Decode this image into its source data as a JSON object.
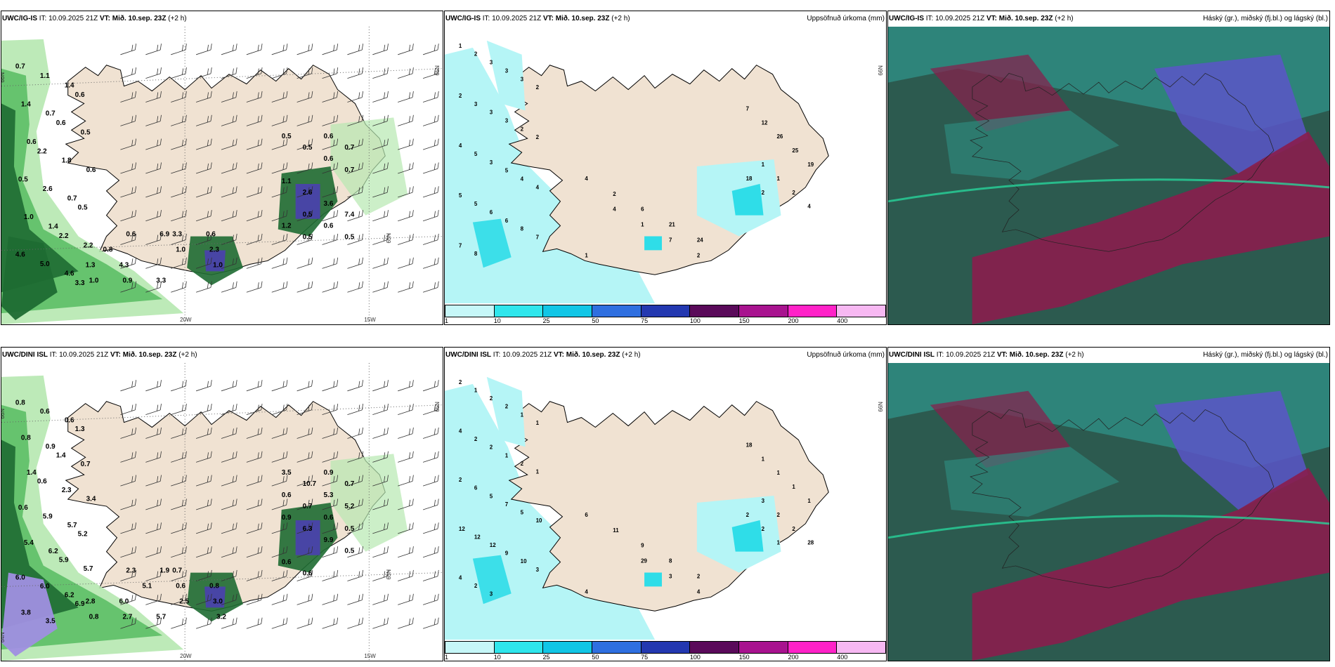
{
  "colors": {
    "land": "#f0e2d2",
    "sea": "#ffffff",
    "green_light": "#b6e8b0",
    "green_mid": "#5cbf66",
    "green_dark": "#1e6b32",
    "purple": "#9f8fe0",
    "precip_light": "#b5f5f6",
    "precip_mid": "#2fdde8",
    "cloud_dark": "#2c5a4f",
    "cloud_teal": "#2f8f84",
    "cloud_blue": "#5b55c8",
    "cloud_red": "#8a1d4c"
  },
  "panels": [
    {
      "model": "UWC/IG-IS",
      "it_label": "IT:",
      "it": "10.09.2025 21Z",
      "vt_label": "VT:",
      "vt": "Mið. 10.sep. 23Z",
      "lead": "(+2 h)",
      "right_title": "",
      "type": "wind",
      "axis": {
        "lat": "66N",
        "lon_a": "20W",
        "lon_b": "15W",
        "lat2": "65N"
      },
      "labels": [
        "0.7",
        "1.1",
        "1.4",
        "0.6",
        "1.4",
        "0.7",
        "0.6",
        "0.5",
        "0.6",
        "2.2",
        "1.8",
        "0.6",
        "0.5",
        "2.6",
        "0.7",
        "0.5",
        "1.0",
        "1.4",
        "2.2",
        "2.2",
        "4.6",
        "5.0",
        "4.6",
        "3.3",
        "0.6",
        "0.8",
        "4.3",
        "3.3",
        "3.3",
        "2.3",
        "1.3",
        "0.9",
        "6.9",
        "1.0",
        "1.0",
        "1.0",
        "0.6",
        "0.5",
        "0.6",
        "0.5",
        "0.5",
        "0.5",
        "0.6",
        "0.7",
        "1.1",
        "2.6",
        "3.6",
        "7.4",
        "1.2",
        "0.5",
        "0.6",
        "0.7"
      ]
    },
    {
      "model": "UWC/IG-IS",
      "it_label": "IT:",
      "it": "10.09.2025 21Z",
      "vt_label": "VT:",
      "vt": "Mið. 10.sep. 23Z",
      "lead": "(+2 h)",
      "right_title": "Uppsöfnuð úrkoma (mm)",
      "type": "precip",
      "axis": {
        "lat": "66N",
        "lat2": "65N"
      },
      "labels": [
        "1",
        "2",
        "3",
        "3",
        "3",
        "2",
        "2",
        "3",
        "3",
        "3",
        "2",
        "2",
        "4",
        "5",
        "3",
        "5",
        "4",
        "4",
        "5",
        "5",
        "6",
        "6",
        "8",
        "7",
        "7",
        "8",
        "4",
        "1",
        "7",
        "2",
        "4",
        "2",
        "6",
        "21",
        "24",
        "1",
        "1",
        "1",
        "2",
        "4",
        "7",
        "12",
        "26",
        "25",
        "19",
        "18",
        "2"
      ],
      "colorbar": {
        "ticks": [
          "1",
          "10",
          "25",
          "50",
          "75",
          "100",
          "150",
          "200",
          "400"
        ],
        "colors": [
          "#c6f7f8",
          "#2fe6ec",
          "#11c6e6",
          "#2f6fe0",
          "#2338b0",
          "#5a0a5a",
          "#a8138f",
          "#ff22c8",
          "#f7b8f2"
        ]
      }
    },
    {
      "model": "UWC/IG-IS",
      "it_label": "IT:",
      "it": "10.09.2025 21Z",
      "vt_label": "VT:",
      "vt": "Mið. 10.sep. 23Z",
      "lead": "(+2 h)",
      "right_title": "Háský (gr.), miðský (fj.bl.) og lágský (bl.)",
      "type": "cloud"
    },
    {
      "model": "UWC/DINI ISL",
      "it_label": "IT:",
      "it": "10.09.2025 21Z",
      "vt_label": "VT:",
      "vt": "Mið. 10.sep. 23Z",
      "lead": "(+2 h)",
      "right_title": "",
      "type": "wind",
      "axis": {
        "lat": "66N",
        "lon_a": "20W",
        "lon_b": "15W",
        "lat2": "65N",
        "lat3": "64N"
      },
      "labels": [
        "0.8",
        "0.6",
        "0.6",
        "1.3",
        "0.8",
        "0.9",
        "1.4",
        "0.7",
        "1.4",
        "0.6",
        "2.3",
        "3.4",
        "0.6",
        "5.9",
        "5.7",
        "5.2",
        "5.4",
        "6.2",
        "5.9",
        "5.7",
        "6.0",
        "6.0",
        "6.2",
        "6.9",
        "3.8",
        "3.5",
        "6.0",
        "5.7",
        "0.7",
        "0.8",
        "2.8",
        "2.7",
        "1.9",
        "0.6",
        "3.0",
        "0.8",
        "2.3",
        "5.1",
        "2.5",
        "3.2",
        "3.5",
        "10.7",
        "5.3",
        "5.2",
        "0.9",
        "6.3",
        "9.9",
        "0.5",
        "0.6",
        "0.6",
        "0.9",
        "0.7",
        "0.6",
        "0.7",
        "0.6",
        "0.5"
      ]
    },
    {
      "model": "UWC/DINI ISL",
      "it_label": "IT:",
      "it": "10.09.2025 21Z",
      "vt_label": "VT:",
      "vt": "Mið. 10.sep. 23Z",
      "lead": "(+2 h)",
      "right_title": "Uppsöfnuð úrkoma (mm)",
      "type": "precip",
      "axis": {
        "lat": "66N",
        "lat2": "65N"
      },
      "labels": [
        "2",
        "1",
        "2",
        "2",
        "1",
        "1",
        "4",
        "2",
        "2",
        "1",
        "2",
        "1",
        "2",
        "6",
        "5",
        "7",
        "5",
        "10",
        "12",
        "12",
        "12",
        "9",
        "10",
        "3",
        "4",
        "2",
        "3",
        "29",
        "3",
        "4",
        "6",
        "11",
        "9",
        "8",
        "2",
        "4",
        "3",
        "2",
        "2",
        "28",
        "18",
        "1",
        "1",
        "1",
        "1",
        "2",
        "2",
        "1"
      ],
      "colorbar": {
        "ticks": [
          "1",
          "10",
          "25",
          "50",
          "75",
          "100",
          "150",
          "200",
          "400"
        ],
        "colors": [
          "#c6f7f8",
          "#2fe6ec",
          "#11c6e6",
          "#2f6fe0",
          "#2338b0",
          "#5a0a5a",
          "#a8138f",
          "#ff22c8",
          "#f7b8f2"
        ]
      }
    },
    {
      "model": "UWC/DINI ISL",
      "it_label": "IT:",
      "it": "10.09.2025 21Z",
      "vt_label": "VT:",
      "vt": "Mið. 10.sep. 23Z",
      "lead": "(+2 h)",
      "right_title": "Háský (gr.), miðský (fj.bl.) og lágský (bl.)",
      "type": "cloud"
    }
  ]
}
